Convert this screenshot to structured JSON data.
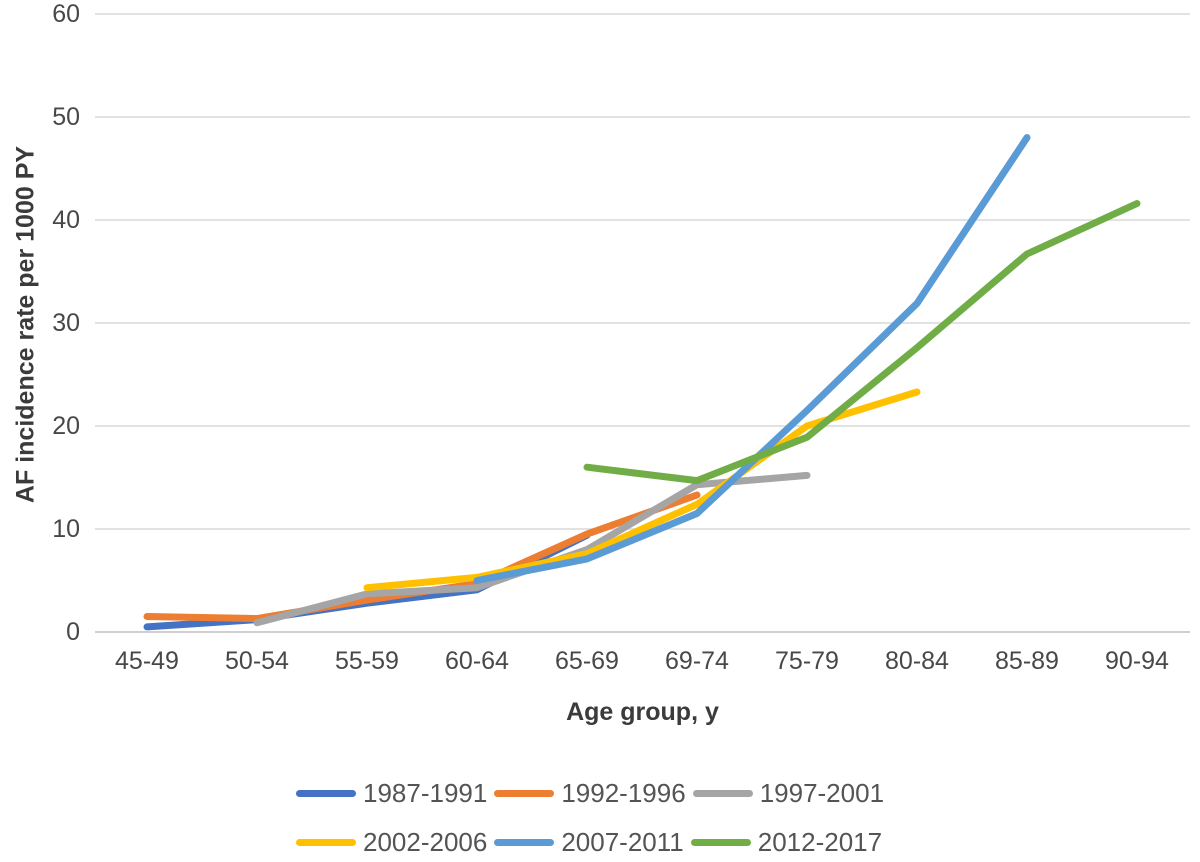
{
  "figure": {
    "ylabel": "AF incidence rate per 1000 PY",
    "xlabel": "Age group, y"
  },
  "chart_data": {
    "type": "line",
    "title": "",
    "xlabel": "Age group, y",
    "ylabel": "AF incidence rate per 1000 PY",
    "categories": [
      "45-49",
      "50-54",
      "55-59",
      "60-64",
      "65-69",
      "69-74",
      "75-79",
      "80-84",
      "85-89",
      "90-94"
    ],
    "series": [
      {
        "name": "1987-1991",
        "color": "#4472C4",
        "values": [
          0.5,
          1.2,
          2.8,
          4.1,
          9.4,
          null,
          null,
          null,
          null,
          null
        ]
      },
      {
        "name": "1992-1996",
        "color": "#ED7D31",
        "values": [
          1.5,
          1.3,
          3.1,
          4.7,
          9.5,
          13.3,
          null,
          null,
          null,
          null
        ]
      },
      {
        "name": "1997-2001",
        "color": "#A5A5A5",
        "values": [
          null,
          0.9,
          3.7,
          4.3,
          8.0,
          14.3,
          15.2,
          null,
          null,
          null
        ]
      },
      {
        "name": "2002-2006",
        "color": "#FFC000",
        "values": [
          null,
          null,
          4.3,
          5.3,
          7.6,
          12.4,
          20.0,
          23.3,
          null,
          null
        ]
      },
      {
        "name": "2007-2011",
        "color": "#5B9BD5",
        "values": [
          null,
          null,
          null,
          5.0,
          7.1,
          11.5,
          21.5,
          31.9,
          48.0,
          null
        ]
      },
      {
        "name": "2012-2017",
        "color": "#70AD47",
        "values": [
          null,
          null,
          null,
          null,
          16.0,
          14.7,
          18.9,
          27.6,
          36.7,
          41.6
        ]
      }
    ],
    "ylim": [
      0,
      60
    ],
    "yticks": [
      0,
      10,
      20,
      30,
      40,
      50,
      60
    ],
    "grid": true,
    "legend_position": "bottom",
    "legend_rows": [
      [
        "1987-1991",
        "1992-1996",
        "1997-2001"
      ],
      [
        "2002-2006",
        "2007-2011",
        "2012-2017"
      ]
    ]
  }
}
